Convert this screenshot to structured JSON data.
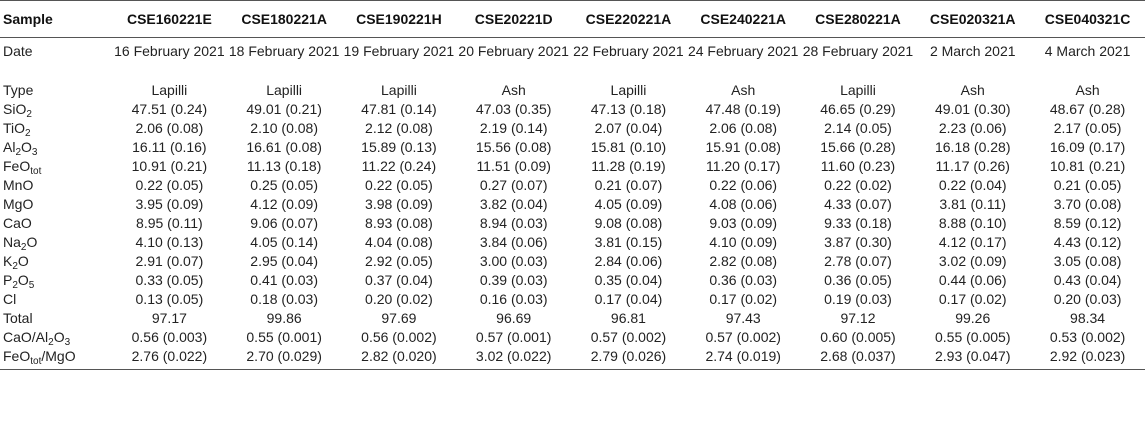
{
  "table": {
    "header_label": "Sample",
    "samples": [
      "CSE160221E",
      "CSE180221A",
      "CSE190221H",
      "CSE20221D",
      "CSE220221A",
      "CSE240221A",
      "CSE280221A",
      "CSE020321A",
      "CSE040321C"
    ],
    "rows": [
      {
        "label": "Date",
        "label_sub": "",
        "values": [
          "16 February 2021",
          "18 February 2021",
          "19 February 2021",
          "20 February 2021",
          "22 February 2021",
          "24 February 2021",
          "28 February 2021",
          "2 March 2021",
          "4 March 2021"
        ]
      },
      {
        "label": "Type",
        "label_sub": "",
        "values": [
          "Lapilli",
          "Lapilli",
          "Lapilli",
          "Ash",
          "Lapilli",
          "Ash",
          "Lapilli",
          "Ash",
          "Ash"
        ]
      },
      {
        "label": "SiO",
        "label_sub": "2",
        "values": [
          "47.51 (0.24)",
          "49.01 (0.21)",
          "47.81 (0.14)",
          "47.03 (0.35)",
          "47.13 (0.18)",
          "47.48 (0.19)",
          "46.65 (0.29)",
          "49.01 (0.30)",
          "48.67 (0.28)"
        ]
      },
      {
        "label": "TiO",
        "label_sub": "2",
        "values": [
          "2.06 (0.08)",
          "2.10 (0.08)",
          "2.12 (0.08)",
          "2.19 (0.14)",
          "2.07 (0.04)",
          "2.06 (0.08)",
          "2.14 (0.05)",
          "2.23 (0.06)",
          "2.17 (0.05)"
        ]
      },
      {
        "label": "Al",
        "label_sub": "2",
        "label_mid": "O",
        "label_sub2": "3",
        "values": [
          "16.11 (0.16)",
          "16.61 (0.08)",
          "15.89 (0.13)",
          "15.56 (0.08)",
          "15.81 (0.10)",
          "15.91 (0.08)",
          "15.66 (0.28)",
          "16.18 (0.28)",
          "16.09 (0.17)"
        ]
      },
      {
        "label": "FeO",
        "label_sub": "tot",
        "values": [
          "10.91 (0.21)",
          "11.13 (0.18)",
          "11.22 (0.24)",
          "11.51 (0.09)",
          "11.28 (0.19)",
          "11.20 (0.17)",
          "11.60 (0.23)",
          "11.17 (0.26)",
          "10.81 (0.21)"
        ]
      },
      {
        "label": "MnO",
        "label_sub": "",
        "values": [
          "0.22 (0.05)",
          "0.25 (0.05)",
          "0.22 (0.05)",
          "0.27 (0.07)",
          "0.21 (0.07)",
          "0.22 (0.06)",
          "0.22 (0.02)",
          "0.22 (0.04)",
          "0.21 (0.05)"
        ]
      },
      {
        "label": "MgO",
        "label_sub": "",
        "values": [
          "3.95 (0.09)",
          "4.12 (0.09)",
          "3.98 (0.09)",
          "3.82 (0.04)",
          "4.05 (0.09)",
          "4.08 (0.06)",
          "4.33 (0.07)",
          "3.81 (0.11)",
          "3.70 (0.08)"
        ]
      },
      {
        "label": "CaO",
        "label_sub": "",
        "values": [
          "8.95 (0.11)",
          "9.06 (0.07)",
          "8.93 (0.08)",
          "8.94 (0.03)",
          "9.08 (0.08)",
          "9.03 (0.09)",
          "9.33 (0.18)",
          "8.88 (0.10)",
          "8.59 (0.12)"
        ]
      },
      {
        "label": "Na",
        "label_sub": "2",
        "label_mid": "O",
        "label_sub2": "",
        "values": [
          "4.10 (0.13)",
          "4.05 (0.14)",
          "4.04 (0.08)",
          "3.84 (0.06)",
          "3.81 (0.15)",
          "4.10 (0.09)",
          "3.87 (0.30)",
          "4.12 (0.17)",
          "4.43 (0.12)"
        ]
      },
      {
        "label": "K",
        "label_sub": "2",
        "label_mid": "O",
        "label_sub2": "",
        "values": [
          "2.91 (0.07)",
          "2.95 (0.04)",
          "2.92 (0.05)",
          "3.00 (0.03)",
          "2.84 (0.06)",
          "2.82 (0.08)",
          "2.78 (0.07)",
          "3.02 (0.09)",
          "3.05 (0.08)"
        ]
      },
      {
        "label": "P",
        "label_sub": "2",
        "label_mid": "O",
        "label_sub2": "5",
        "values": [
          "0.33 (0.05)",
          "0.41 (0.03)",
          "0.37 (0.04)",
          "0.39 (0.03)",
          "0.35 (0.04)",
          "0.36 (0.03)",
          "0.36 (0.05)",
          "0.44 (0.06)",
          "0.43 (0.04)"
        ]
      },
      {
        "label": "Cl",
        "label_sub": "",
        "values": [
          "0.13 (0.05)",
          "0.18 (0.03)",
          "0.20 (0.02)",
          "0.16 (0.03)",
          "0.17 (0.04)",
          "0.17 (0.02)",
          "0.19 (0.03)",
          "0.17 (0.02)",
          "0.20 (0.03)"
        ]
      },
      {
        "label": "Total",
        "label_sub": "",
        "values": [
          "97.17",
          "99.86",
          "97.69",
          "96.69",
          "96.81",
          "97.43",
          "97.12",
          "99.26",
          "98.34"
        ]
      },
      {
        "label": "CaO/Al",
        "label_sub": "2",
        "label_mid": "O",
        "label_sub2": "3",
        "values": [
          "0.56 (0.003)",
          "0.55 (0.001)",
          "0.56 (0.002)",
          "0.57 (0.001)",
          "0.57 (0.002)",
          "0.57 (0.002)",
          "0.60 (0.005)",
          "0.55 (0.005)",
          "0.53 (0.002)"
        ]
      },
      {
        "label": "FeO",
        "label_sub": "tot",
        "label_mid": "/MgO",
        "label_sub2": "",
        "values": [
          "2.76 (0.022)",
          "2.70 (0.029)",
          "2.82 (0.020)",
          "3.02 (0.022)",
          "2.79 (0.026)",
          "2.74 (0.019)",
          "2.68 (0.037)",
          "2.93 (0.047)",
          "2.92 (0.023)"
        ]
      }
    ]
  }
}
